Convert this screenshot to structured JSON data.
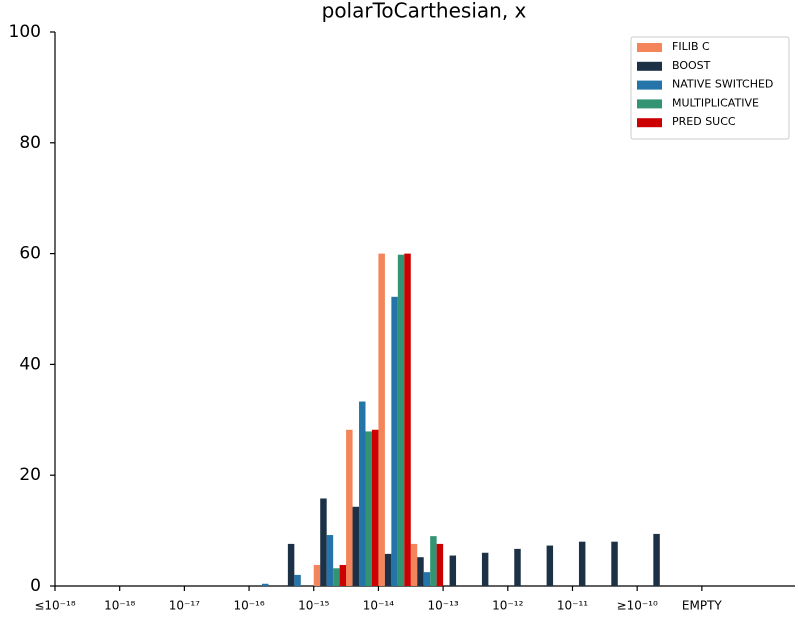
{
  "chart_data": {
    "type": "bar",
    "title": "polarToCarthesian, x",
    "x": [
      3.25,
      3.75,
      4.25,
      4.75,
      5.25,
      5.75,
      6.25,
      6.75,
      7.25,
      7.75,
      8.25,
      8.75,
      9.4
    ],
    "series": [
      {
        "name": "FILIB C",
        "color": "#f4845a",
        "values": [
          0,
          0,
          3.8,
          28.2,
          60,
          7.6,
          0,
          0,
          0,
          0,
          0,
          0,
          0
        ]
      },
      {
        "name": "BOOST",
        "color": "#1c3146",
        "values": [
          0,
          7.6,
          15.8,
          14.3,
          5.8,
          5.2,
          5.5,
          6,
          6.7,
          7.3,
          8,
          8,
          9.4
        ]
      },
      {
        "name": "NATIVE SWITCHED",
        "color": "#2574a9",
        "values": [
          0.4,
          2,
          9.2,
          33.3,
          52.2,
          2.5,
          0,
          0,
          0,
          0,
          0,
          0,
          0
        ]
      },
      {
        "name": "MULTIPLICATIVE",
        "color": "#329472",
        "values": [
          0,
          0,
          3.2,
          27.9,
          59.8,
          9,
          0,
          0,
          0,
          0,
          0,
          0,
          0
        ]
      },
      {
        "name": "PRED SUCC",
        "color": "#cc0000",
        "values": [
          0,
          0,
          3.8,
          28.2,
          60,
          7.6,
          0,
          0,
          0,
          0,
          0,
          0,
          0
        ]
      }
    ],
    "xlim": [
      0,
      11.44
    ],
    "xticks": [
      {
        "value": 0,
        "label": "≤10⁻¹⁸"
      },
      {
        "value": 1,
        "label": "10⁻¹⁸"
      },
      {
        "value": 2,
        "label": "10⁻¹⁷"
      },
      {
        "value": 3,
        "label": "10⁻¹⁶"
      },
      {
        "value": 4,
        "label": "10⁻¹⁵"
      },
      {
        "value": 5,
        "label": "10⁻¹⁴"
      },
      {
        "value": 6,
        "label": "10⁻¹³"
      },
      {
        "value": 7,
        "label": "10⁻¹²"
      },
      {
        "value": 8,
        "label": "10⁻¹¹"
      },
      {
        "value": 9,
        "label": "≥10⁻¹⁰"
      },
      {
        "value": 10,
        "label": "EMPTY"
      }
    ],
    "ylim": [
      0,
      100
    ],
    "yticks": [
      0,
      20,
      40,
      60,
      80,
      100
    ],
    "grid": false,
    "legend": "upper right"
  }
}
